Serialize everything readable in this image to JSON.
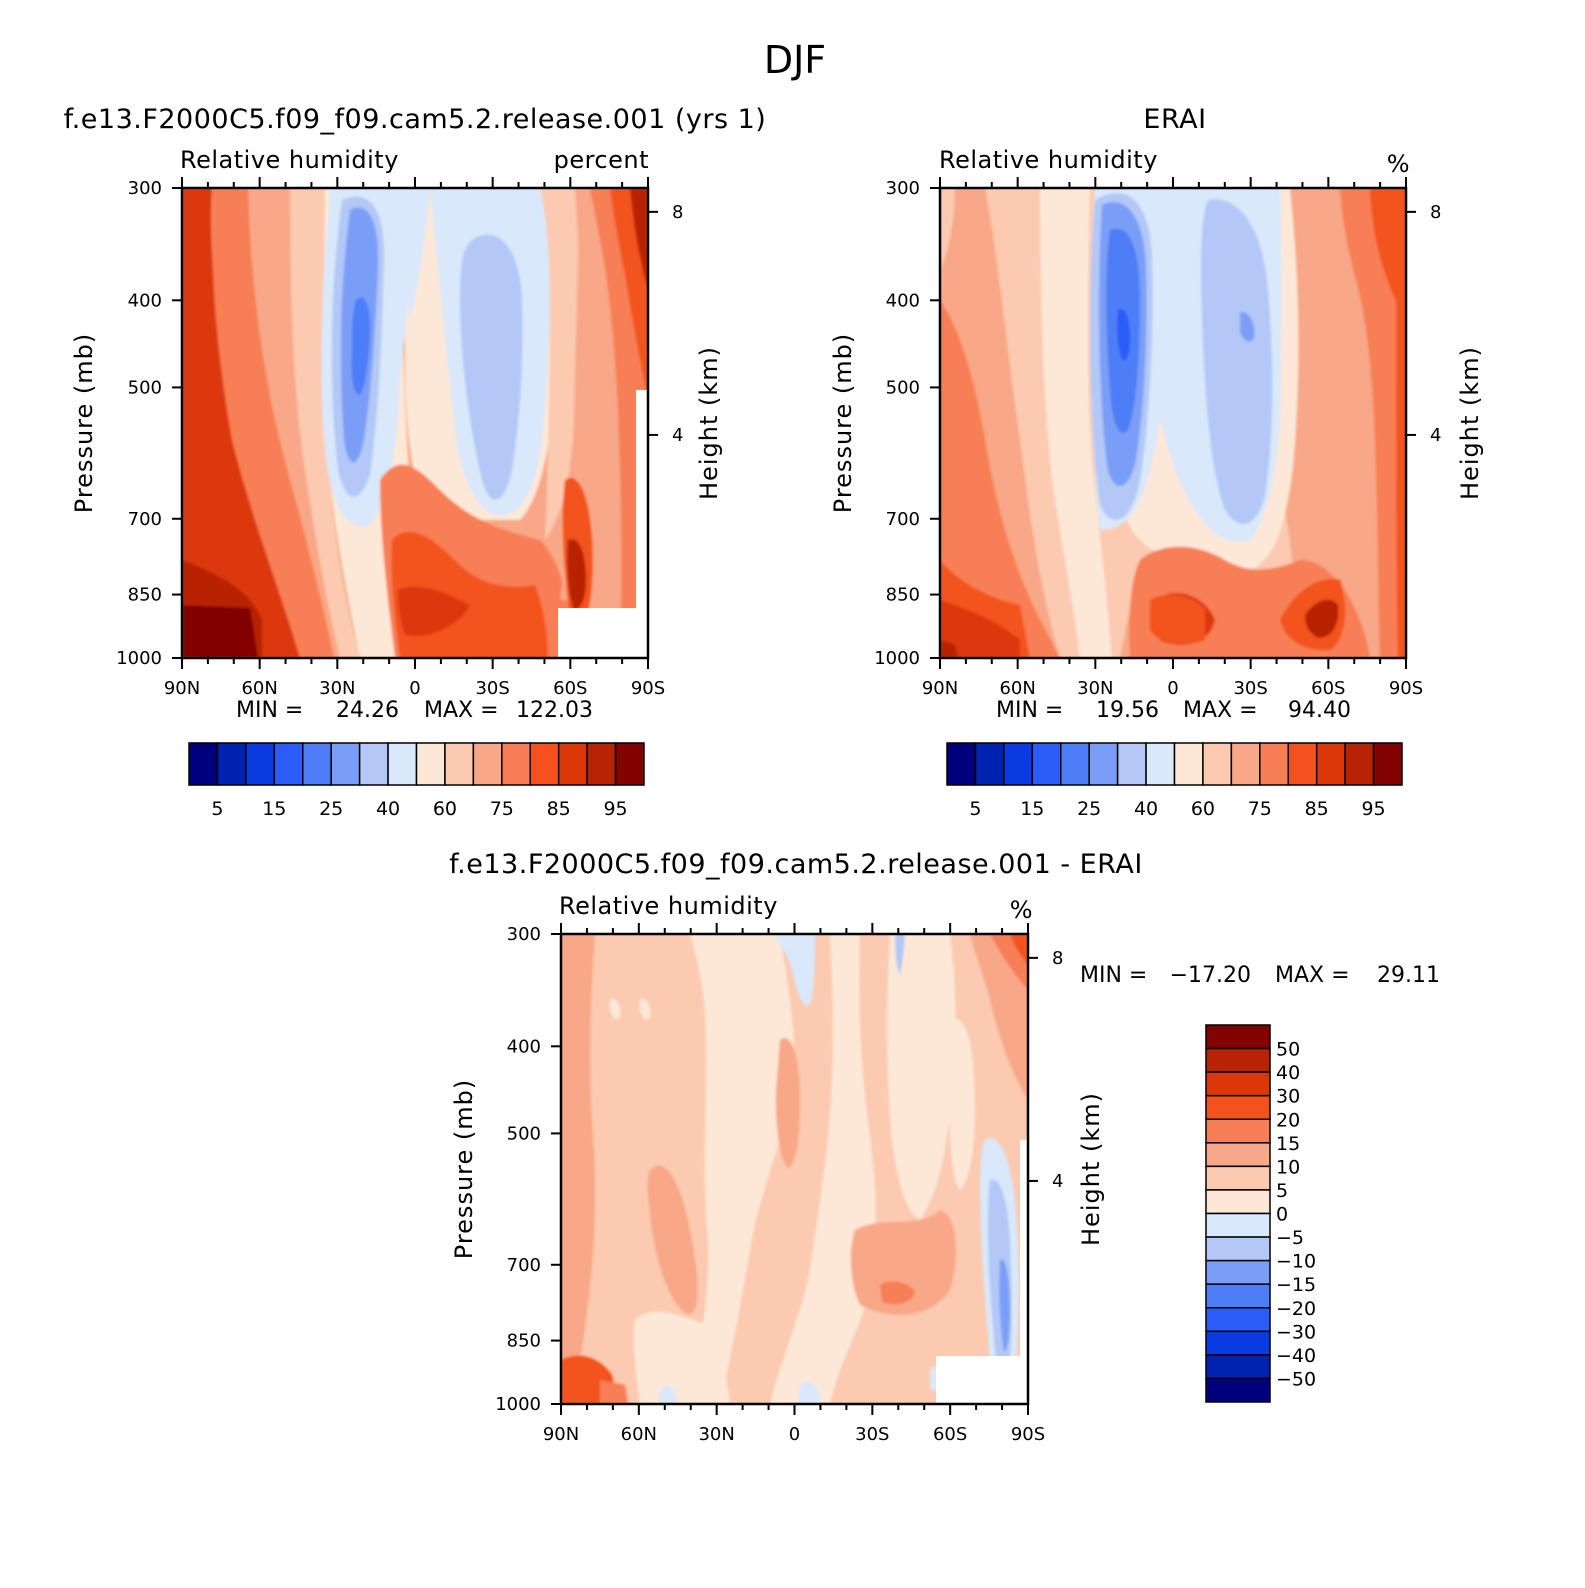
{
  "figure_title": "DJF",
  "chart_data": [
    {
      "type": "heatmap",
      "title": "f.e13.F2000C5.f09_f09.cam5.2.release.001 (yrs 1)",
      "left_string": "Relative humidity",
      "right_string": "percent",
      "ylabel": "Pressure (mb)",
      "ylabel2": "Height (km)",
      "x_ticks": [
        "90N",
        "60N",
        "30N",
        "0",
        "30S",
        "60S",
        "90S"
      ],
      "y_ticks": [
        "300",
        "400",
        "500",
        "700",
        "850",
        "1000"
      ],
      "y2_ticks": [
        "8",
        "4"
      ],
      "ylim": [
        1000,
        300
      ],
      "min_label": "MIN =",
      "min_value": "24.26",
      "max_label": "MAX =",
      "max_value": "122.03",
      "colorbar_levels": [
        5,
        10,
        15,
        20,
        25,
        30,
        40,
        50,
        60,
        70,
        75,
        80,
        85,
        90,
        95
      ],
      "colorbar_labels": [
        "5",
        "15",
        "25",
        "40",
        "60",
        "75",
        "85",
        "95"
      ],
      "colors": [
        "#00007f",
        "#0022b0",
        "#0a3be0",
        "#2b5cf7",
        "#4d7ef7",
        "#7a9ef7",
        "#b3c8f7",
        "#d9e8fa",
        "#fde8d8",
        "#fbcab0",
        "#f8a788",
        "#f87e55",
        "#f3521f",
        "#dc3708",
        "#b82305",
        "#820300"
      ]
    },
    {
      "type": "heatmap",
      "title": "ERAI",
      "left_string": "Relative humidity",
      "right_string": "%",
      "ylabel": "Pressure (mb)",
      "ylabel2": "Height (km)",
      "x_ticks": [
        "90N",
        "60N",
        "30N",
        "0",
        "30S",
        "60S",
        "90S"
      ],
      "y_ticks": [
        "300",
        "400",
        "500",
        "700",
        "850",
        "1000"
      ],
      "y2_ticks": [
        "8",
        "4"
      ],
      "ylim": [
        1000,
        300
      ],
      "min_label": "MIN =",
      "min_value": "19.56",
      "max_label": "MAX =",
      "max_value": "94.40",
      "colorbar_levels": [
        5,
        10,
        15,
        20,
        25,
        30,
        40,
        50,
        60,
        70,
        75,
        80,
        85,
        90,
        95
      ],
      "colorbar_labels": [
        "5",
        "15",
        "25",
        "40",
        "60",
        "75",
        "85",
        "95"
      ],
      "colors": [
        "#00007f",
        "#0022b0",
        "#0a3be0",
        "#2b5cf7",
        "#4d7ef7",
        "#7a9ef7",
        "#b3c8f7",
        "#d9e8fa",
        "#fde8d8",
        "#fbcab0",
        "#f8a788",
        "#f87e55",
        "#f3521f",
        "#dc3708",
        "#b82305",
        "#820300"
      ]
    },
    {
      "type": "heatmap",
      "title": "f.e13.F2000C5.f09_f09.cam5.2.release.001 - ERAI",
      "left_string": "Relative humidity",
      "right_string": "%",
      "ylabel": "Pressure (mb)",
      "ylabel2": "Height (km)",
      "x_ticks": [
        "90N",
        "60N",
        "30N",
        "0",
        "30S",
        "60S",
        "90S"
      ],
      "y_ticks": [
        "300",
        "400",
        "500",
        "700",
        "850",
        "1000"
      ],
      "y2_ticks": [
        "8",
        "4"
      ],
      "ylim": [
        1000,
        300
      ],
      "min_label": "MIN =",
      "min_value": "-17.20",
      "max_label": "MAX =",
      "max_value": "29.11",
      "colorbar_labels": [
        "50",
        "40",
        "30",
        "20",
        "15",
        "10",
        "5",
        "0",
        "-5",
        "-10",
        "-15",
        "-20",
        "-30",
        "-40",
        "-50"
      ],
      "colors": [
        "#820300",
        "#b82305",
        "#dc3708",
        "#f3521f",
        "#f87e55",
        "#f8a788",
        "#fbcab0",
        "#fde8d8",
        "#d9e8fa",
        "#b3c8f7",
        "#7a9ef7",
        "#4d7ef7",
        "#2b5cf7",
        "#0a3be0",
        "#0022b0",
        "#00007f"
      ]
    }
  ]
}
